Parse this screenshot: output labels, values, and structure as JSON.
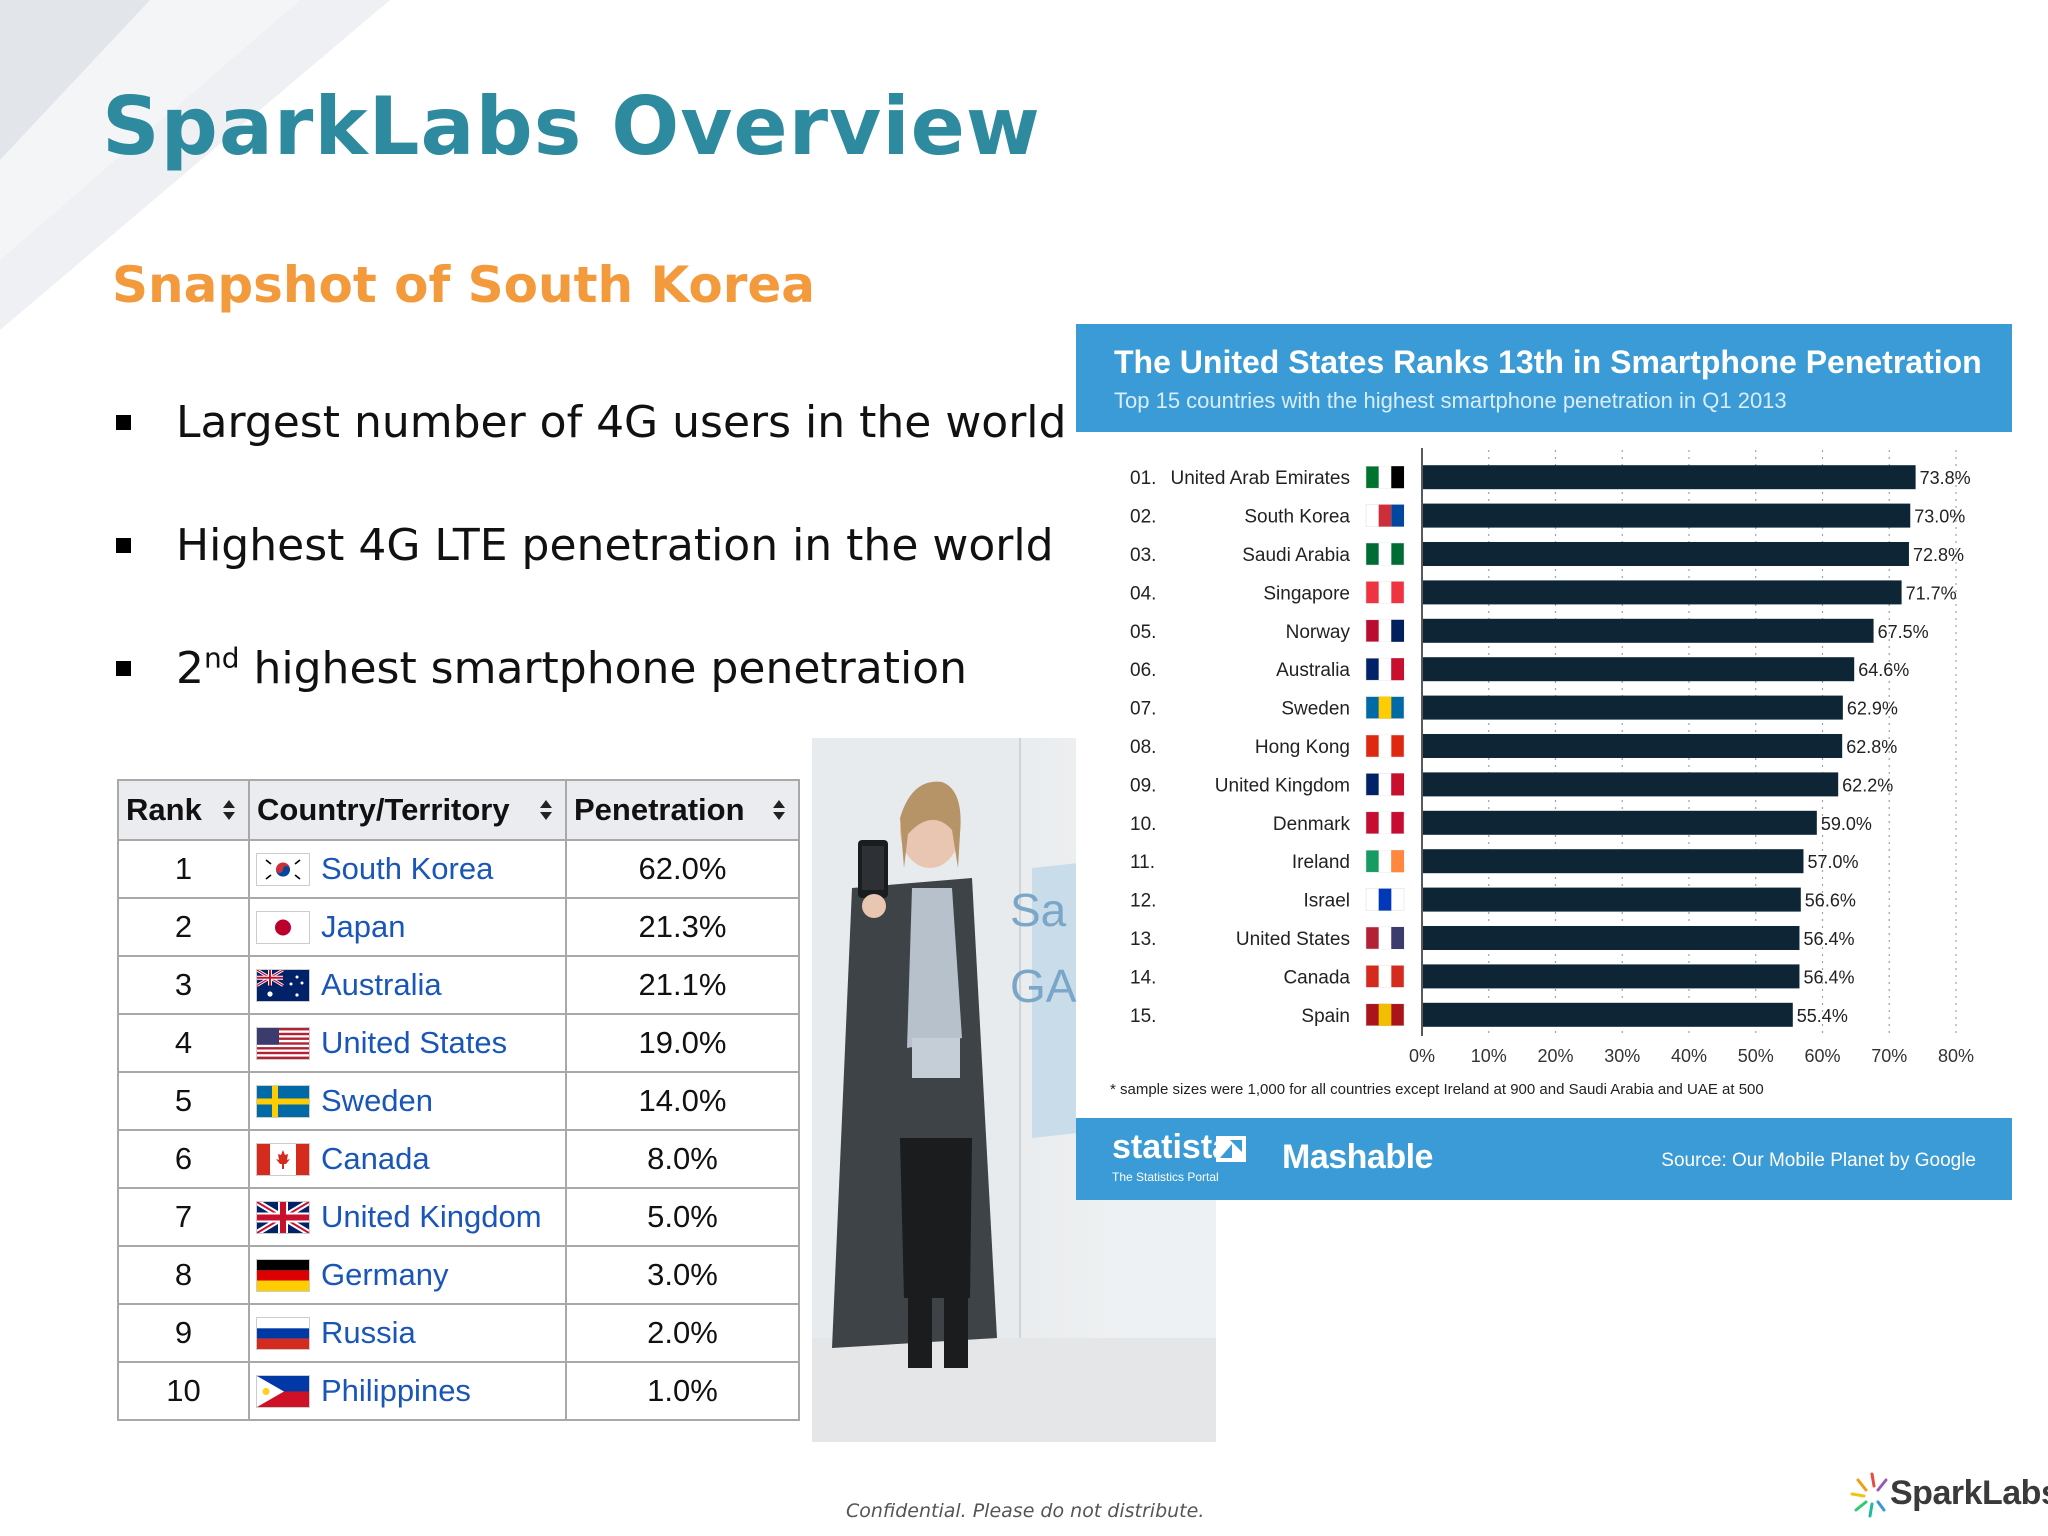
{
  "slide": {
    "title": "SparkLabs Overview",
    "subtitle": "Snapshot of South Korea",
    "footer_note": "Confidential. Please do not distribute.",
    "colors": {
      "title": "#2e8a9e",
      "subtitle": "#f39a3c",
      "link": "#1a56b8",
      "chart_header": "#3a9bd6",
      "bar": "#0e2535"
    }
  },
  "bullets": [
    {
      "text": "Largest number of 4G users in the world"
    },
    {
      "text": "Highest 4G LTE penetration in the world"
    },
    {
      "ordinal": "2",
      "ordinal_suffix": "nd",
      "text": " highest smartphone penetration"
    }
  ],
  "ranking_table": {
    "headers": [
      "Rank",
      "Country/Territory",
      "Penetration"
    ],
    "rows": [
      {
        "rank": "1",
        "country": "South Korea",
        "flag": "south-korea-flag",
        "penetration": "62.0%"
      },
      {
        "rank": "2",
        "country": "Japan",
        "flag": "japan-flag",
        "penetration": "21.3%"
      },
      {
        "rank": "3",
        "country": "Australia",
        "flag": "australia-flag",
        "penetration": "21.1%"
      },
      {
        "rank": "4",
        "country": "United States",
        "flag": "united-states-flag",
        "penetration": "19.0%"
      },
      {
        "rank": "5",
        "country": "Sweden",
        "flag": "sweden-flag",
        "penetration": "14.0%"
      },
      {
        "rank": "6",
        "country": "Canada",
        "flag": "canada-flag",
        "penetration": "8.0%"
      },
      {
        "rank": "7",
        "country": "United Kingdom",
        "flag": "united-kingdom-flag",
        "penetration": "5.0%"
      },
      {
        "rank": "8",
        "country": "Germany",
        "flag": "germany-flag",
        "penetration": "3.0%"
      },
      {
        "rank": "9",
        "country": "Russia",
        "flag": "russia-flag",
        "penetration": "2.0%"
      },
      {
        "rank": "10",
        "country": "Philippines",
        "flag": "philippines-flag",
        "penetration": "1.0%"
      }
    ]
  },
  "infographic": {
    "title": "The United States Ranks 13th in Smartphone Penetration",
    "subtitle": "Top 15 countries with the highest smartphone penetration in Q1 2013",
    "note": "* sample sizes were 1,000 for all countries except Ireland at 900 and Saudi Arabia and UAE at 500",
    "statista_word": "statista",
    "statista_tagline": "The Statistics Portal",
    "mashable_word": "Mashable",
    "source": "Source: Our Mobile Planet by Google"
  },
  "chart_data": {
    "type": "bar",
    "orientation": "horizontal",
    "rank_labels": [
      "01.",
      "02.",
      "03.",
      "04.",
      "05.",
      "06.",
      "07.",
      "08.",
      "09.",
      "10.",
      "11.",
      "12.",
      "13.",
      "14.",
      "15."
    ],
    "categories": [
      "United Arab Emirates",
      "South Korea",
      "Saudi Arabia",
      "Singapore",
      "Norway",
      "Australia",
      "Sweden",
      "Hong Kong",
      "United Kingdom",
      "Denmark",
      "Ireland",
      "Israel",
      "United States",
      "Canada",
      "Spain"
    ],
    "values": [
      73.8,
      73.0,
      72.8,
      71.7,
      67.5,
      64.6,
      62.9,
      62.8,
      62.2,
      59.0,
      57.0,
      56.6,
      56.4,
      56.4,
      55.4
    ],
    "value_labels": [
      "73.8%",
      "73.0%",
      "72.8%",
      "71.7%",
      "67.5%",
      "64.6%",
      "62.9%",
      "62.8%",
      "62.2%",
      "59.0%",
      "57.0%",
      "56.6%",
      "56.4%",
      "56.4%",
      "55.4%"
    ],
    "xlim": [
      0,
      80
    ],
    "x_ticks": [
      "0%",
      "10%",
      "20%",
      "30%",
      "40%",
      "50%",
      "60%",
      "70%",
      "80%"
    ],
    "grid": true,
    "flags": [
      "uae-flag",
      "south-korea-flag",
      "saudi-arabia-flag",
      "singapore-flag",
      "norway-flag",
      "australia-flag",
      "sweden-flag",
      "hong-kong-flag",
      "united-kingdom-flag",
      "denmark-flag",
      "ireland-flag",
      "israel-flag",
      "united-states-flag",
      "canada-flag",
      "spain-flag"
    ]
  },
  "logo": {
    "word": "SparkLabs"
  }
}
